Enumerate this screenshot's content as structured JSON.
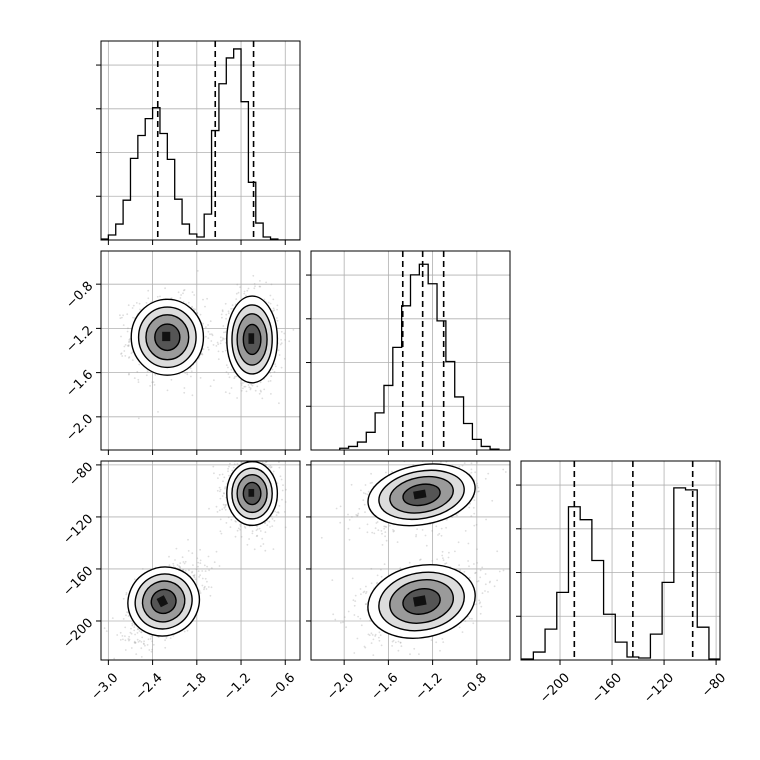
{
  "chart_data": {
    "type": "corner",
    "grid": true,
    "colors": {
      "hist": "#000000",
      "points": "#9e9e9e",
      "density": "#000000",
      "grid": "#b0b0b0"
    },
    "params": [
      {
        "range": [
          -3.1,
          -0.4
        ],
        "ticks": [
          -3.0,
          -2.4,
          -1.8,
          -1.2,
          -0.6
        ],
        "tick_labels": [
          "−3.0",
          "−2.4",
          "−1.8",
          "−1.2",
          "−0.6"
        ],
        "quantiles": [
          -2.33,
          -1.55,
          -1.03
        ],
        "hist_bins": [
          -3.05,
          -2.95,
          -2.85,
          -2.75,
          -2.65,
          -2.55,
          -2.45,
          -2.35,
          -2.25,
          -2.15,
          -2.05,
          -1.95,
          -1.85,
          -1.75,
          -1.65,
          -1.55,
          -1.45,
          -1.35,
          -1.25,
          -1.15,
          -1.05,
          -0.95,
          -0.85,
          -0.75,
          -0.65,
          -0.55,
          -0.45
        ],
        "hist_values": [
          0.1,
          0.5,
          1.6,
          4.0,
          8.2,
          10.5,
          12.2,
          13.3,
          10.7,
          8.1,
          4.1,
          1.6,
          0.6,
          0.3,
          2.6,
          11.0,
          15.7,
          18.3,
          19.2,
          13.9,
          5.8,
          1.7,
          0.3,
          0.1,
          0.0,
          0.0,
          0.0
        ],
        "hist_max": 20
      },
      {
        "range": [
          -2.3,
          -0.5
        ],
        "ticks": [
          -2.0,
          -1.6,
          -1.2,
          -0.8
        ],
        "tick_labels": [
          "−2.0",
          "−1.6",
          "−1.2",
          "−0.8"
        ],
        "quantiles": [
          -1.47,
          -1.29,
          -1.1
        ],
        "hist_bins": [
          -2.0,
          -1.92,
          -1.84,
          -1.76,
          -1.68,
          -1.6,
          -1.52,
          -1.44,
          -1.36,
          -1.28,
          -1.2,
          -1.12,
          -1.04,
          -0.96,
          -0.88,
          -0.8,
          -0.72,
          -0.64
        ],
        "hist_values": [
          0.2,
          0.4,
          0.9,
          2.0,
          4.2,
          7.3,
          11.6,
          16.3,
          19.8,
          21.0,
          18.8,
          14.6,
          10.0,
          6.0,
          3.0,
          1.2,
          0.4,
          0.1
        ],
        "hist_max": 22.5
      },
      {
        "range": [
          -230,
          -77
        ],
        "ticks": [
          -200,
          -160,
          -120,
          -80
        ],
        "tick_labels": [
          "−200",
          "−160",
          "−120",
          "−80"
        ],
        "quantiles": [
          -189,
          -144,
          -98
        ],
        "hist_bins": [
          -225,
          -216,
          -207,
          -198,
          -189,
          -180,
          -171,
          -162,
          -153,
          -144,
          -135,
          -126,
          -117,
          -108,
          -99,
          -90,
          -81
        ],
        "hist_values": [
          0.1,
          0.8,
          3.1,
          6.8,
          15.4,
          14.1,
          10.0,
          4.6,
          1.8,
          0.3,
          0.2,
          2.6,
          7.8,
          17.3,
          17.1,
          3.3,
          0.1
        ],
        "hist_max": 20
      }
    ],
    "pairs": [
      {
        "row": 1,
        "col": 0,
        "clusters": [
          {
            "mean": [
              -2.2,
              -1.28
            ],
            "sd": [
              0.2,
              0.14
            ],
            "corr": 0.0,
            "weight": 0.5
          },
          {
            "mean": [
              -1.05,
              -1.3
            ],
            "sd": [
              0.14,
              0.16
            ],
            "corr": 0.0,
            "weight": 0.5
          }
        ]
      },
      {
        "row": 2,
        "col": 0,
        "clusters": [
          {
            "mean": [
              -2.25,
              -185
            ],
            "sd": [
              0.2,
              12
            ],
            "corr": 0.55,
            "weight": 0.5
          },
          {
            "mean": [
              -1.05,
              -102
            ],
            "sd": [
              0.14,
              10
            ],
            "corr": 0.0,
            "weight": 0.5
          }
        ]
      },
      {
        "row": 2,
        "col": 1,
        "clusters": [
          {
            "mean": [
              -1.3,
              -103
            ],
            "sd": [
              0.2,
              10
            ],
            "corr": 0.35,
            "weight": 0.5
          },
          {
            "mean": [
              -1.3,
              -185
            ],
            "sd": [
              0.2,
              12
            ],
            "corr": 0.3,
            "weight": 0.5
          }
        ]
      }
    ]
  }
}
